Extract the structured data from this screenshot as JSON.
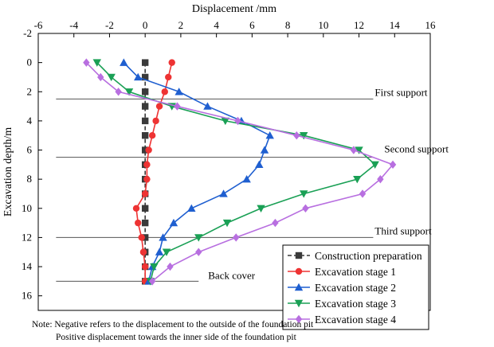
{
  "chart_data": {
    "type": "line",
    "title": "",
    "xlabel": "Displacement /mm",
    "ylabel": "Excavation depth/m",
    "xlim": [
      -6,
      16
    ],
    "ylim": [
      -2,
      17
    ],
    "y_inverted": true,
    "x_axis_position": "top",
    "x_ticks": [
      -6,
      -4,
      -2,
      0,
      2,
      4,
      6,
      8,
      10,
      12,
      14,
      16
    ],
    "y_ticks": [
      -2,
      0,
      2,
      4,
      6,
      8,
      10,
      12,
      14,
      16
    ],
    "grid": false,
    "legend_position": "bottom-right",
    "series": [
      {
        "name": "Construction preparation",
        "color": "#3a3a3a",
        "marker": "square",
        "dashed": true,
        "points": [
          [
            0,
            0
          ],
          [
            0,
            1
          ],
          [
            0,
            2
          ],
          [
            0,
            3
          ],
          [
            0,
            4
          ],
          [
            0,
            5
          ],
          [
            0,
            6
          ],
          [
            0,
            7
          ],
          [
            0,
            8
          ],
          [
            0,
            9
          ],
          [
            0,
            10
          ],
          [
            0,
            11
          ],
          [
            0,
            12
          ],
          [
            0,
            13
          ],
          [
            0,
            14
          ],
          [
            0,
            15
          ]
        ]
      },
      {
        "name": "Excavation stage 1",
        "color": "#ee3333",
        "marker": "circle",
        "dashed": false,
        "points": [
          [
            1.5,
            0
          ],
          [
            1.3,
            1
          ],
          [
            1.1,
            2
          ],
          [
            0.8,
            3
          ],
          [
            0.6,
            4
          ],
          [
            0.4,
            5
          ],
          [
            0.2,
            6
          ],
          [
            0.1,
            7
          ],
          [
            0.1,
            8
          ],
          [
            0,
            9
          ],
          [
            -0.5,
            10
          ],
          [
            -0.4,
            11
          ],
          [
            -0.2,
            12
          ],
          [
            -0.1,
            13
          ],
          [
            0,
            14
          ],
          [
            0,
            15
          ]
        ]
      },
      {
        "name": "Excavation stage 2",
        "color": "#1f5fd0",
        "marker": "triangle-up",
        "dashed": false,
        "points": [
          [
            -1.2,
            0
          ],
          [
            -0.4,
            1
          ],
          [
            1.9,
            2
          ],
          [
            3.5,
            3
          ],
          [
            5.4,
            4
          ],
          [
            7,
            5
          ],
          [
            6.7,
            6
          ],
          [
            6.4,
            7
          ],
          [
            5.7,
            8
          ],
          [
            4.4,
            9
          ],
          [
            2.6,
            10
          ],
          [
            1.6,
            11
          ],
          [
            1.0,
            12
          ],
          [
            0.8,
            13
          ],
          [
            0.4,
            14
          ],
          [
            0.2,
            15
          ]
        ]
      },
      {
        "name": "Excavation stage 3",
        "color": "#1aa055",
        "marker": "triangle-down",
        "dashed": false,
        "points": [
          [
            -2.7,
            0
          ],
          [
            -1.9,
            1
          ],
          [
            -0.9,
            2
          ],
          [
            1.5,
            3
          ],
          [
            4.5,
            4
          ],
          [
            8.9,
            5
          ],
          [
            12,
            6
          ],
          [
            12.9,
            7
          ],
          [
            11.9,
            8
          ],
          [
            8.9,
            9
          ],
          [
            6.5,
            10
          ],
          [
            4.6,
            11
          ],
          [
            3.0,
            12
          ],
          [
            1.2,
            13
          ],
          [
            0.5,
            14
          ],
          [
            0.3,
            15
          ]
        ]
      },
      {
        "name": "Excavation stage 4",
        "color": "#b86fe0",
        "marker": "diamond",
        "dashed": false,
        "points": [
          [
            -3.3,
            0
          ],
          [
            -2.5,
            1
          ],
          [
            -1.5,
            2
          ],
          [
            1.8,
            3
          ],
          [
            5.2,
            4
          ],
          [
            8.5,
            5
          ],
          [
            11.7,
            6
          ],
          [
            13.9,
            7
          ],
          [
            13.2,
            8
          ],
          [
            12.2,
            9
          ],
          [
            9.0,
            10
          ],
          [
            7.3,
            11
          ],
          [
            5.1,
            12
          ],
          [
            3.0,
            13
          ],
          [
            1.4,
            14
          ],
          [
            0.4,
            15
          ]
        ]
      }
    ],
    "reference_lines": [
      {
        "depth": 2.5,
        "from_x": -5,
        "to_x": 12.8,
        "label": "First support"
      },
      {
        "depth": 6.5,
        "from_x": -5,
        "to_x": 12.8,
        "label": "Second support"
      },
      {
        "depth": 12.0,
        "from_x": -5,
        "to_x": 12.8,
        "label": "Third support"
      },
      {
        "depth": 15.0,
        "from_x": -5,
        "to_x": 3.0,
        "label": "Back cover"
      }
    ]
  },
  "notes": {
    "line1": "Note: Negative refers to the displacement to the outside of the foundation pit",
    "line2": "Positive displacement towards the inner side of the foundation pit"
  }
}
